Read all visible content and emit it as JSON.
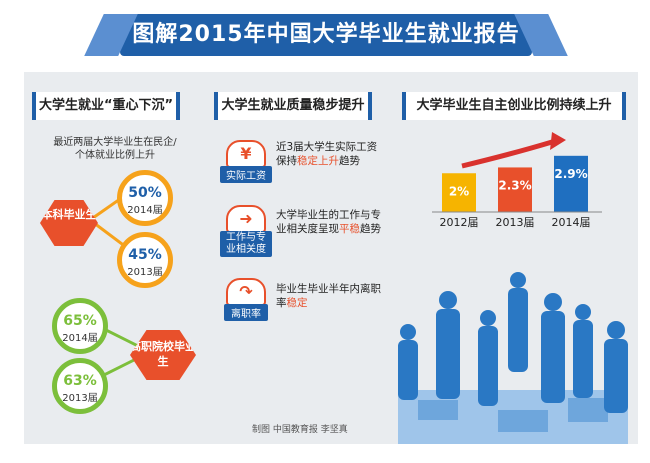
{
  "title": "图解2015年中国大学毕业生就业报告",
  "sections": {
    "left": {
      "heading": "大学生就业“重心下沉”",
      "note": "最近两届大学毕业生在民企/个体就业比例上升",
      "groups": [
        {
          "label": "本科毕业生",
          "items": [
            {
              "pct": "50%",
              "year": "2014届",
              "value": 50
            },
            {
              "pct": "45%",
              "year": "2013届",
              "value": 45
            }
          ]
        },
        {
          "label": "高职院校毕业生",
          "items": [
            {
              "pct": "65%",
              "year": "2014届",
              "value": 65
            },
            {
              "pct": "63%",
              "year": "2013届",
              "value": 63
            }
          ]
        }
      ]
    },
    "middle": {
      "heading": "大学生就业质量稳步提升",
      "items": [
        {
          "icon": "yen-icon",
          "glyph": "¥",
          "label": "实际工资",
          "text_a": "近3届大学生实际工资保持",
          "highlight": "稳定上升",
          "text_b": "趋势"
        },
        {
          "icon": "arrow-right-icon",
          "glyph": "➜",
          "label": "工作与专业相关度",
          "text_a": "大学毕业生的工作与专业相关度呈现",
          "highlight": "平稳",
          "text_b": "趋势"
        },
        {
          "icon": "exit-icon",
          "glyph": "↷",
          "label": "离职率",
          "text_a": "毕业生毕业半年内离职率",
          "highlight": "稳定",
          "text_b": ""
        }
      ]
    },
    "right": {
      "heading": "大学毕业生自主创业比例持续上升"
    }
  },
  "chart_data": {
    "type": "bar",
    "categories": [
      "2012届",
      "2013届",
      "2014届"
    ],
    "values": [
      2.0,
      2.3,
      2.9
    ],
    "value_labels": [
      "2%",
      "2.3%",
      "2.9%"
    ],
    "colors": [
      "#f6b400",
      "#e8502b",
      "#1f6fc0"
    ],
    "title": "大学毕业生自主创业比例持续上升",
    "ylim": [
      0,
      3.2
    ]
  },
  "credit": "制图  中国教育报  李坚真",
  "colors": {
    "primary": "#1f5fa8",
    "accent": "#e8502b",
    "orange": "#f6a21b",
    "green": "#7cbf3b",
    "panel": "#e9ecef"
  }
}
